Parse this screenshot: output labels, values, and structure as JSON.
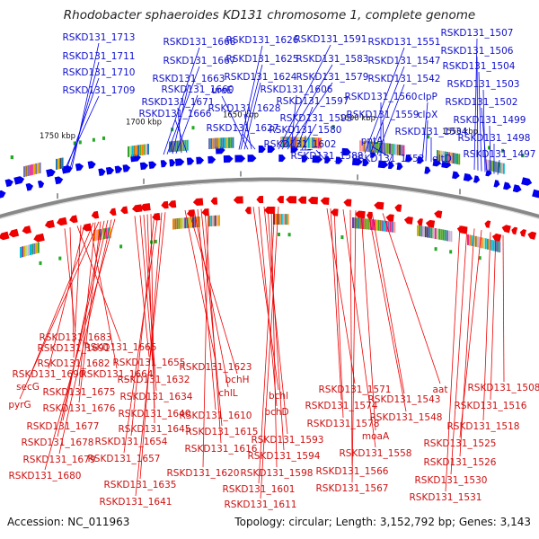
{
  "title": "Rhodobacter sphaeroides KD131 chromosome 1, complete genome",
  "footer": {
    "accession": "Accession: NC_011963",
    "summary": "Topology: circular; Length: 3,152,792 bp; Genes: 3,143"
  },
  "ticks": [
    "1750 kbp",
    "1700 kbp",
    "1650 kbp",
    "1600 kbp",
    "1550 kbp"
  ],
  "colors": {
    "forward_strand": "#0000ee",
    "reverse_strand": "#ee0000",
    "backbone": "#888888",
    "rna": "#22aa22"
  },
  "labels_top": [
    "RSKD131_1713",
    "RSKD131_1711",
    "RSKD131_1710",
    "RSKD131_1709",
    "RSKD131_1668",
    "RSKD131_1667",
    "RSKD131_1663",
    "RSKD131_1660",
    "RSKD131_1671",
    "RSKD131_1666",
    "RSKD131_1626",
    "RSKD131_1625",
    "RSKD131_1624",
    "ureE",
    "RSKD131_1628",
    "RSKD131_1627",
    "RSKD131_1591",
    "RSKD131_1583",
    "RSKD131_1579",
    "RSKD131_1606",
    "RSKD131_1597",
    "RSKD131_1595",
    "RSKD131_1580",
    "RSKD131_1602",
    "RSKD131_1588",
    "RSKD131_1551",
    "RSKD131_1547",
    "RSKD131_1542",
    "RSKD131_1560",
    "RSKD131_1559",
    "pntA",
    "RSKD131_1552",
    "clpP",
    "clpX",
    "RSKD131_1534",
    "gltD",
    "RSKD131_1507",
    "RSKD131_1506",
    "RSKD131_1504",
    "RSKD131_1503",
    "RSKD131_1502",
    "RSKD131_1499",
    "RSKD131_1498",
    "RSKD131_1497"
  ],
  "labels_bottom": [
    "RSKD131_1683",
    "RSKD131_1691",
    "RSKD131_1665",
    "RSKD131_1682",
    "RSKD131_1690",
    "RSKD131_1664",
    "secG",
    "RSKD131_1675",
    "pyrG",
    "RSKD131_1676",
    "RSKD131_1677",
    "RSKD131_1678",
    "RSKD131_1679",
    "RSKD131_1680",
    "RSKD131_1655",
    "RSKD131_1632",
    "RSKD131_1634",
    "RSKD131_1640",
    "RSKD131_1645",
    "RSKD131_1654",
    "RSKD131_1657",
    "RSKD131_1635",
    "RSKD131_1641",
    "RSKD131_1623",
    "bchH",
    "chlL",
    "RSKD131_1610",
    "RSKD131_1615",
    "RSKD131_1616",
    "RSKD131_1620",
    "bchl",
    "bchD",
    "RSKD131_1593",
    "RSKD131_1594",
    "RSKD131_1598",
    "RSKD131_1601",
    "RSKD131_1611",
    "RSKD131_1571",
    "RSKD131_1574",
    "RSKD131_1578",
    "RSKD131_1558",
    "RSKD131_1566",
    "RSKD131_1567",
    "moaA",
    "RSKD131_1548",
    "RSKD131_1543",
    "aat",
    "RSKD131_1508",
    "RSKD131_1516",
    "RSKD131_1518",
    "RSKD131_1525",
    "RSKD131_1526",
    "RSKD131_1530",
    "RSKD131_1531"
  ]
}
